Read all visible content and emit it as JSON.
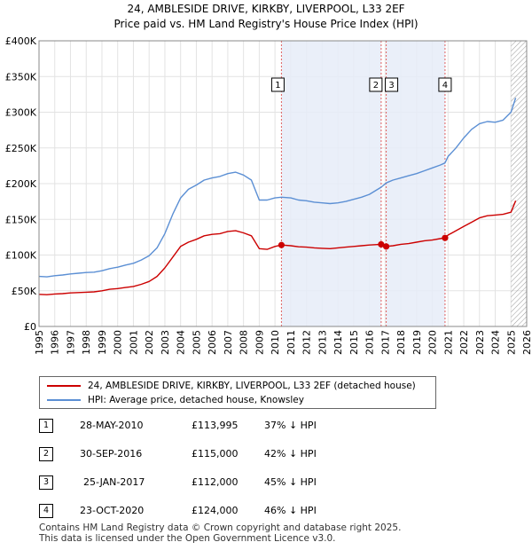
{
  "chart_data": {
    "type": "line",
    "title": "24, AMBLESIDE DRIVE, KIRKBY, LIVERPOOL, L33 2EF",
    "subtitle": "Price paid vs. HM Land Registry's House Price Index (HPI)",
    "xlim": [
      1995,
      2026
    ],
    "ylim": [
      0,
      400000
    ],
    "x_ticks": [
      "1995",
      "1996",
      "1997",
      "1998",
      "1999",
      "2000",
      "2001",
      "2002",
      "2003",
      "2004",
      "2005",
      "2006",
      "2007",
      "2008",
      "2009",
      "2010",
      "2011",
      "2012",
      "2013",
      "2014",
      "2015",
      "2016",
      "2017",
      "2018",
      "2019",
      "2020",
      "2021",
      "2022",
      "2023",
      "2024",
      "2025",
      "2026"
    ],
    "y_ticks": [
      {
        "value": 0,
        "label": "£0"
      },
      {
        "value": 50000,
        "label": "£50K"
      },
      {
        "value": 100000,
        "label": "£100K"
      },
      {
        "value": 150000,
        "label": "£150K"
      },
      {
        "value": 200000,
        "label": "£200K"
      },
      {
        "value": 250000,
        "label": "£250K"
      },
      {
        "value": 300000,
        "label": "£300K"
      },
      {
        "value": 350000,
        "label": "£350K"
      },
      {
        "value": 400000,
        "label": "£400K"
      }
    ],
    "hatched_after": 2025.0,
    "shaded_spans": [
      [
        2010.41,
        2016.75
      ],
      [
        2017.07,
        2020.81
      ]
    ],
    "series": [
      {
        "name": "24, AMBLESIDE DRIVE, KIRKBY, LIVERPOOL, L33 2EF (detached house)",
        "color": "#cc0000",
        "points": [
          [
            1995.0,
            45000
          ],
          [
            1995.5,
            44500
          ],
          [
            1996.0,
            45500
          ],
          [
            1996.5,
            46000
          ],
          [
            1997.0,
            47000
          ],
          [
            1997.5,
            47500
          ],
          [
            1998.0,
            48000
          ],
          [
            1998.5,
            48500
          ],
          [
            1999.0,
            50000
          ],
          [
            1999.5,
            52000
          ],
          [
            2000.0,
            53000
          ],
          [
            2000.5,
            54500
          ],
          [
            2001.0,
            56000
          ],
          [
            2001.5,
            59000
          ],
          [
            2002.0,
            63000
          ],
          [
            2002.5,
            70000
          ],
          [
            2003.0,
            82000
          ],
          [
            2003.5,
            97000
          ],
          [
            2004.0,
            112000
          ],
          [
            2004.5,
            118000
          ],
          [
            2005.0,
            122000
          ],
          [
            2005.5,
            127000
          ],
          [
            2006.0,
            129000
          ],
          [
            2006.5,
            130000
          ],
          [
            2007.0,
            133000
          ],
          [
            2007.5,
            134000
          ],
          [
            2008.0,
            131000
          ],
          [
            2008.5,
            127000
          ],
          [
            2009.0,
            109000
          ],
          [
            2009.5,
            108000
          ],
          [
            2010.0,
            112000
          ],
          [
            2010.41,
            113995
          ],
          [
            2011.0,
            113000
          ],
          [
            2011.5,
            111500
          ],
          [
            2012.0,
            111000
          ],
          [
            2012.5,
            110000
          ],
          [
            2013.0,
            109500
          ],
          [
            2013.5,
            109000
          ],
          [
            2014.0,
            110000
          ],
          [
            2014.5,
            111000
          ],
          [
            2015.0,
            112000
          ],
          [
            2015.5,
            113000
          ],
          [
            2016.0,
            114000
          ],
          [
            2016.75,
            115000
          ],
          [
            2017.07,
            112000
          ],
          [
            2017.5,
            113000
          ],
          [
            2018.0,
            115000
          ],
          [
            2018.5,
            116000
          ],
          [
            2019.0,
            118000
          ],
          [
            2019.5,
            120000
          ],
          [
            2020.0,
            121000
          ],
          [
            2020.5,
            123000
          ],
          [
            2020.81,
            124000
          ],
          [
            2021.0,
            128000
          ],
          [
            2021.5,
            134000
          ],
          [
            2022.0,
            140000
          ],
          [
            2022.5,
            146000
          ],
          [
            2023.0,
            152000
          ],
          [
            2023.5,
            155000
          ],
          [
            2024.0,
            156000
          ],
          [
            2024.5,
            157000
          ],
          [
            2025.0,
            160000
          ],
          [
            2025.3,
            176000
          ]
        ]
      },
      {
        "name": "HPI: Average price, detached house, Knowsley",
        "color": "#5b8fd4",
        "points": [
          [
            1995.0,
            70000
          ],
          [
            1995.5,
            69500
          ],
          [
            1996.0,
            71000
          ],
          [
            1996.5,
            72000
          ],
          [
            1997.0,
            73500
          ],
          [
            1997.5,
            74500
          ],
          [
            1998.0,
            75500
          ],
          [
            1998.5,
            76000
          ],
          [
            1999.0,
            78000
          ],
          [
            1999.5,
            81000
          ],
          [
            2000.0,
            83000
          ],
          [
            2000.5,
            86000
          ],
          [
            2001.0,
            88500
          ],
          [
            2001.5,
            93000
          ],
          [
            2002.0,
            99000
          ],
          [
            2002.5,
            110000
          ],
          [
            2003.0,
            130000
          ],
          [
            2003.5,
            157000
          ],
          [
            2004.0,
            180000
          ],
          [
            2004.5,
            192000
          ],
          [
            2005.0,
            198000
          ],
          [
            2005.5,
            205000
          ],
          [
            2006.0,
            208000
          ],
          [
            2006.5,
            210000
          ],
          [
            2007.0,
            214000
          ],
          [
            2007.5,
            216000
          ],
          [
            2008.0,
            212000
          ],
          [
            2008.5,
            205000
          ],
          [
            2009.0,
            177000
          ],
          [
            2009.5,
            177000
          ],
          [
            2010.0,
            180000
          ],
          [
            2010.41,
            181000
          ],
          [
            2011.0,
            180000
          ],
          [
            2011.5,
            177000
          ],
          [
            2012.0,
            176000
          ],
          [
            2012.5,
            174000
          ],
          [
            2013.0,
            173000
          ],
          [
            2013.5,
            172000
          ],
          [
            2014.0,
            173000
          ],
          [
            2014.5,
            175000
          ],
          [
            2015.0,
            178000
          ],
          [
            2015.5,
            181000
          ],
          [
            2016.0,
            185000
          ],
          [
            2016.75,
            195000
          ],
          [
            2017.07,
            201000
          ],
          [
            2017.5,
            205000
          ],
          [
            2018.0,
            208000
          ],
          [
            2018.5,
            211000
          ],
          [
            2019.0,
            214000
          ],
          [
            2019.5,
            218000
          ],
          [
            2020.0,
            222000
          ],
          [
            2020.5,
            226000
          ],
          [
            2020.81,
            229000
          ],
          [
            2021.0,
            238000
          ],
          [
            2021.5,
            250000
          ],
          [
            2022.0,
            264000
          ],
          [
            2022.5,
            276000
          ],
          [
            2023.0,
            284000
          ],
          [
            2023.5,
            287000
          ],
          [
            2024.0,
            286000
          ],
          [
            2024.5,
            289000
          ],
          [
            2025.0,
            300000
          ],
          [
            2025.3,
            320000
          ]
        ]
      }
    ],
    "markers": [
      {
        "label": "1",
        "x": 2010.41,
        "y": 113995
      },
      {
        "label": "2",
        "x": 2016.75,
        "y": 115000
      },
      {
        "label": "3",
        "x": 2017.07,
        "y": 112000
      },
      {
        "label": "4",
        "x": 2020.81,
        "y": 124000
      }
    ]
  },
  "legend": {
    "items": [
      {
        "label": "24, AMBLESIDE DRIVE, KIRKBY, LIVERPOOL, L33 2EF (detached house)",
        "color": "#cc0000"
      },
      {
        "label": "HPI: Average price, detached house, Knowsley",
        "color": "#5b8fd4"
      }
    ]
  },
  "sales": [
    {
      "num": "1",
      "date": "28-MAY-2010",
      "price": "£113,995",
      "hpi": "37% ↓ HPI"
    },
    {
      "num": "2",
      "date": "30-SEP-2016",
      "price": "£115,000",
      "hpi": "42% ↓ HPI"
    },
    {
      "num": "3",
      "date": "25-JAN-2017",
      "price": "£112,000",
      "hpi": "45% ↓ HPI"
    },
    {
      "num": "4",
      "date": "23-OCT-2020",
      "price": "£124,000",
      "hpi": "46% ↓ HPI"
    }
  ],
  "footer": {
    "line1": "Contains HM Land Registry data © Crown copyright and database right 2025.",
    "line2": "This data is licensed under the Open Government Licence v3.0."
  }
}
